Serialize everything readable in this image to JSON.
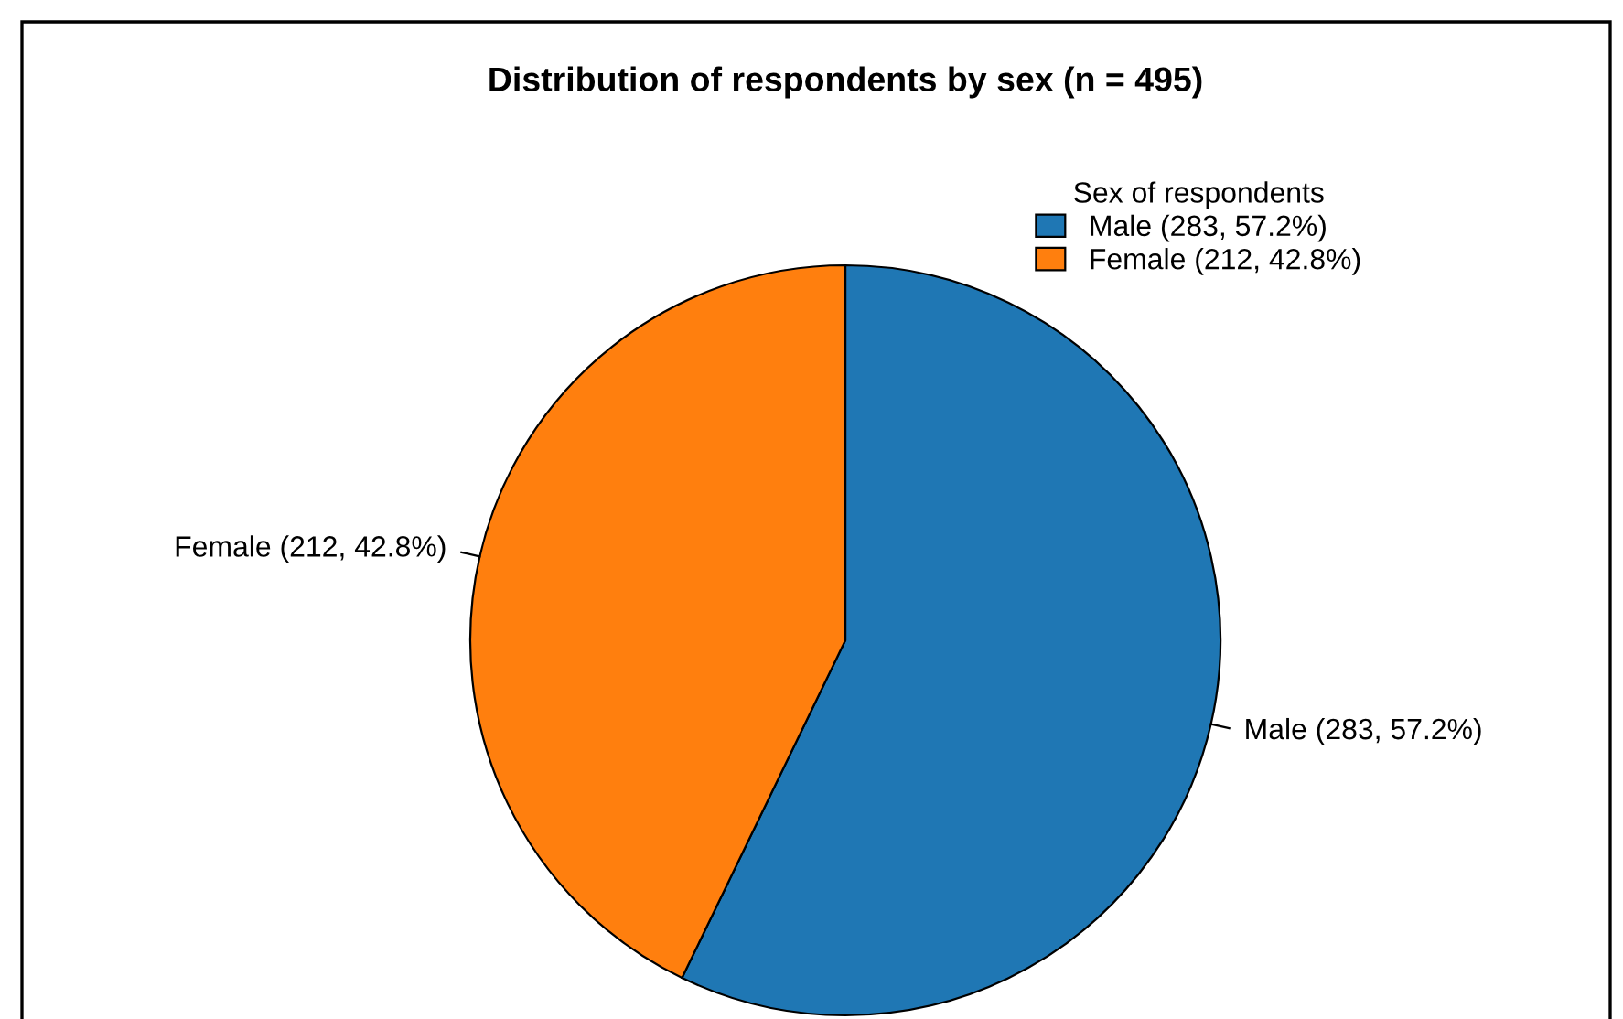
{
  "chart_data": {
    "type": "pie",
    "title": "Distribution of respondents by sex (n = 495)",
    "legend_title": "Sex of respondents",
    "categories": [
      "Male (283, 57.2%)",
      "Female (212, 42.8%)"
    ],
    "values": [
      283,
      212
    ],
    "colors": [
      "#1f77b4",
      "#ff7f0e"
    ],
    "legend": "top right"
  }
}
